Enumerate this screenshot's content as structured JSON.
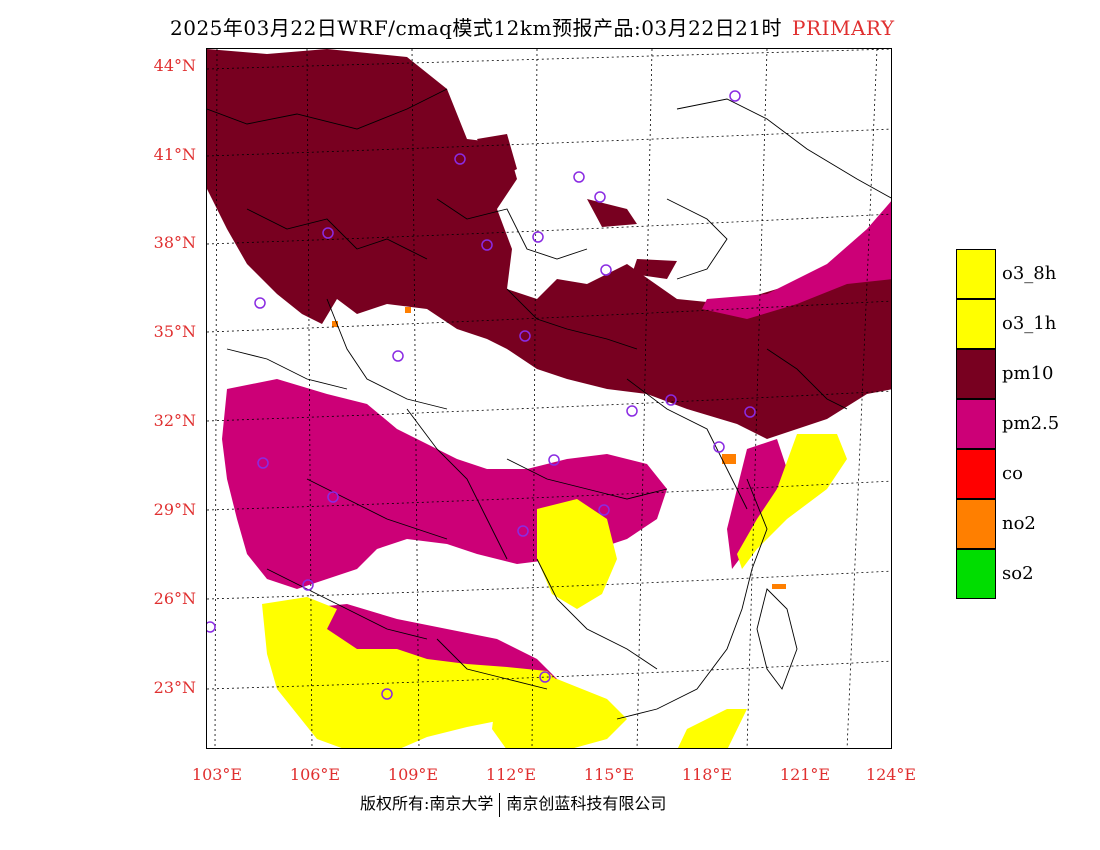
{
  "title": {
    "main": "2025年03月22日WRF/cmaq模式12km预报产品:03月22日21时",
    "tag": "PRIMARY"
  },
  "lat_labels": [
    "44°N",
    "41°N",
    "38°N",
    "35°N",
    "32°N",
    "29°N",
    "26°N",
    "23°N"
  ],
  "lon_labels": [
    "103°E",
    "106°E",
    "109°E",
    "112°E",
    "115°E",
    "118°E",
    "121°E",
    "124°E"
  ],
  "legend": [
    {
      "label": "o3_8h",
      "color": "#ffff00"
    },
    {
      "label": "o3_1h",
      "color": "#ffff00"
    },
    {
      "label": "pm10",
      "color": "#780020"
    },
    {
      "label": "pm2.5",
      "color": "#cc0077"
    },
    {
      "label": "co",
      "color": "#ff0000"
    },
    {
      "label": "no2",
      "color": "#ff7f00"
    },
    {
      "label": "so2",
      "color": "#00dd00"
    }
  ],
  "footer": {
    "left": "版权所有:南京大学",
    "right": "南京创蓝科技有限公司"
  }
}
